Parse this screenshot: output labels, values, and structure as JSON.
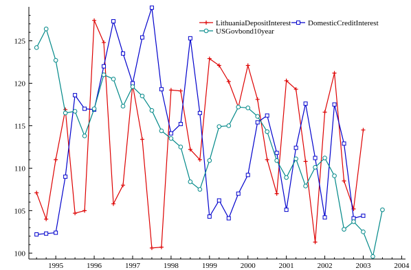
{
  "chart_data": {
    "type": "line",
    "title": "",
    "xlabel": "",
    "ylabel": "",
    "xlim": [
      1994.3,
      2004.1
    ],
    "ylim": [
      99.3,
      129
    ],
    "x_ticks": [
      1995,
      1996,
      1997,
      1998,
      1999,
      2000,
      2001,
      2002,
      2003,
      2004
    ],
    "y_ticks": [
      100,
      105,
      110,
      115,
      120,
      125
    ],
    "grid": false,
    "legend": "top-right",
    "series": [
      {
        "name": "LithuaniaDepositInterest",
        "color": "#dd0000",
        "marker": "plus",
        "x": [
          1994.5,
          1994.75,
          1995.0,
          1995.25,
          1995.5,
          1995.75,
          1996.0,
          1996.25,
          1996.5,
          1996.75,
          1997.0,
          1997.25,
          1997.5,
          1997.75,
          1998.0,
          1998.25,
          1998.5,
          1998.75,
          1999.0,
          1999.25,
          1999.5,
          1999.75,
          2000.0,
          2000.25,
          2000.5,
          2000.75,
          2001.0,
          2001.25,
          2001.5,
          2001.75,
          2002.0,
          2002.25,
          2002.5,
          2002.75,
          2003.0
        ],
        "y": [
          107.1,
          104.0,
          111.0,
          116.9,
          104.7,
          105.0,
          127.4,
          124.8,
          105.8,
          108.0,
          119.8,
          113.4,
          100.6,
          100.7,
          119.2,
          119.1,
          112.2,
          111.0,
          122.9,
          122.1,
          120.2,
          117.2,
          122.1,
          118.1,
          111.0,
          107.0,
          120.3,
          119.3,
          110.8,
          101.3,
          116.6,
          121.2,
          108.5,
          105.2,
          114.5
        ]
      },
      {
        "name": "DomesticCreditInterest",
        "color": "#0000cc",
        "marker": "square",
        "x": [
          1994.5,
          1994.75,
          1995.0,
          1995.25,
          1995.5,
          1995.75,
          1996.0,
          1996.25,
          1996.5,
          1996.75,
          1997.0,
          1997.25,
          1997.5,
          1997.75,
          1998.0,
          1998.25,
          1998.5,
          1998.75,
          1999.0,
          1999.25,
          1999.5,
          1999.75,
          2000.0,
          2000.25,
          2000.5,
          2000.75,
          2001.0,
          2001.25,
          2001.5,
          2001.75,
          2002.0,
          2002.25,
          2002.5,
          2002.75,
          2003.0
        ],
        "y": [
          102.2,
          102.3,
          102.4,
          109.0,
          118.6,
          117.0,
          116.9,
          122.0,
          127.3,
          123.5,
          120.0,
          125.4,
          128.9,
          119.3,
          114.1,
          115.2,
          125.3,
          116.5,
          104.3,
          106.2,
          104.1,
          107.0,
          109.2,
          115.4,
          116.2,
          111.8,
          105.1,
          112.4,
          117.6,
          111.2,
          104.2,
          117.5,
          112.9,
          104.1,
          104.4
        ]
      },
      {
        "name": "USGovbond10year",
        "color": "#008888",
        "marker": "circle",
        "x": [
          1994.5,
          1994.75,
          1995.0,
          1995.25,
          1995.5,
          1995.75,
          1996.0,
          1996.25,
          1996.5,
          1996.75,
          1997.0,
          1997.25,
          1997.5,
          1997.75,
          1998.0,
          1998.25,
          1998.5,
          1998.75,
          1999.0,
          1999.25,
          1999.5,
          1999.75,
          2000.0,
          2000.25,
          2000.5,
          2000.75,
          2001.0,
          2001.25,
          2001.5,
          2001.75,
          2002.0,
          2002.25,
          2002.5,
          2002.75,
          2003.0,
          2003.25,
          2003.5
        ],
        "y": [
          124.2,
          126.4,
          122.7,
          116.5,
          116.7,
          113.8,
          117.0,
          121.0,
          120.5,
          117.3,
          119.6,
          118.5,
          116.8,
          114.4,
          113.5,
          112.5,
          108.4,
          107.5,
          110.9,
          114.9,
          115.0,
          117.2,
          117.1,
          116.1,
          114.3,
          110.9,
          108.9,
          111.1,
          107.9,
          110.1,
          111.2,
          109.1,
          102.8,
          103.7,
          102.5,
          99.6,
          105.1
        ]
      }
    ]
  }
}
